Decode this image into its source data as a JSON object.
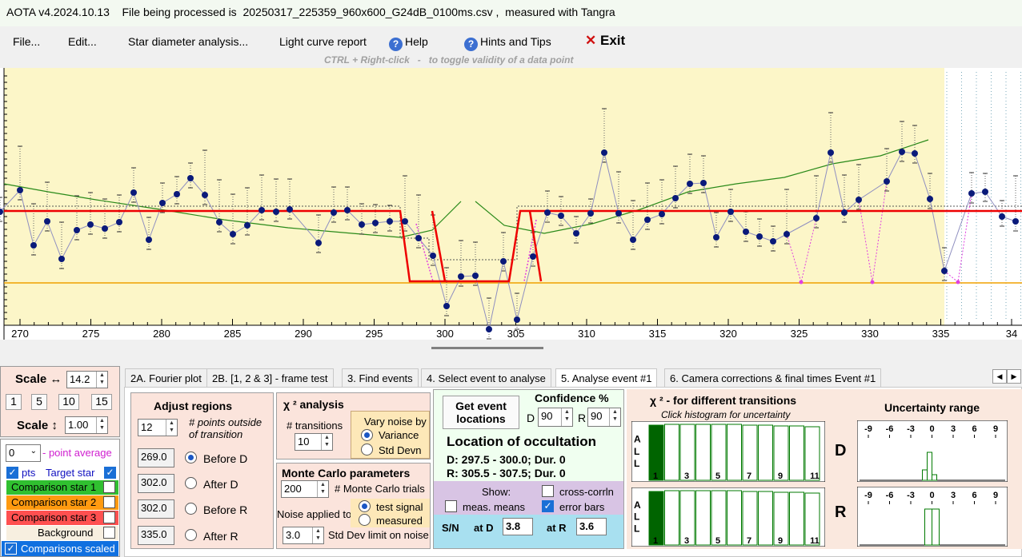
{
  "title_bar": "AOTA v4.2024.10.13    File being processed is  20250317_225359_960x600_G24dB_0100ms.csv ,  measured with Tangra",
  "menu": {
    "file": "File...",
    "edit": "Edit...",
    "star_diameter": "Star diameter analysis...",
    "light_curve": "Light curve report",
    "help": "Help",
    "hints": "Hints and Tips",
    "exit": "Exit"
  },
  "hint": "CTRL + Right-click   -   to toggle validity of a data point",
  "plot": {
    "x_ticks": [
      "270",
      "275",
      "280",
      "285",
      "290",
      "295",
      "300",
      "305",
      "310",
      "315",
      "320",
      "325",
      "330",
      "335",
      "34"
    ],
    "colors": {
      "background": "#fcf6c8",
      "dataline": "#8f8fc0",
      "points": "#0a1a7a",
      "model": "#ee0000",
      "baseline": "#f0a000",
      "smooth": "#2a8a1a",
      "excluded": "#e040e0"
    },
    "points": [
      [
        0,
        265
      ],
      [
        25,
        238
      ],
      [
        42,
        307
      ],
      [
        59,
        277
      ],
      [
        77,
        324
      ],
      [
        96,
        288
      ],
      [
        113,
        281
      ],
      [
        131,
        286
      ],
      [
        149,
        278
      ],
      [
        167,
        241
      ],
      [
        186,
        300
      ],
      [
        203,
        254
      ],
      [
        221,
        243
      ],
      [
        238,
        223
      ],
      [
        256,
        244
      ],
      [
        274,
        278
      ],
      [
        291,
        293
      ],
      [
        309,
        282
      ],
      [
        327,
        263
      ],
      [
        345,
        265
      ],
      [
        362,
        262
      ],
      [
        398,
        304
      ],
      [
        417,
        266
      ],
      [
        434,
        263
      ],
      [
        452,
        281
      ],
      [
        469,
        279
      ],
      [
        487,
        277
      ],
      [
        506,
        277
      ],
      [
        523,
        298
      ],
      [
        541,
        320
      ],
      [
        558,
        383
      ],
      [
        576,
        346
      ],
      [
        594,
        345
      ],
      [
        611,
        412
      ],
      [
        629,
        327
      ],
      [
        646,
        400
      ],
      [
        666,
        321
      ],
      [
        684,
        266
      ],
      [
        701,
        270
      ],
      [
        720,
        292
      ],
      [
        738,
        267
      ],
      [
        755,
        191
      ],
      [
        773,
        267
      ],
      [
        791,
        300
      ],
      [
        809,
        275
      ],
      [
        827,
        268
      ],
      [
        844,
        248
      ],
      [
        862,
        230
      ],
      [
        879,
        229
      ],
      [
        895,
        297
      ],
      [
        913,
        265
      ],
      [
        932,
        290
      ],
      [
        949,
        296
      ],
      [
        966,
        302
      ],
      [
        983,
        293
      ],
      [
        1020,
        273
      ],
      [
        1038,
        191
      ],
      [
        1055,
        266
      ],
      [
        1073,
        250
      ],
      [
        1108,
        227
      ],
      [
        1127,
        190
      ],
      [
        1143,
        192
      ],
      [
        1162,
        249
      ],
      [
        1180,
        339
      ],
      [
        1214,
        242
      ],
      [
        1231,
        240
      ],
      [
        1252,
        271
      ],
      [
        1269,
        277
      ]
    ],
    "excluded_points": [
      [
        1001,
        353
      ],
      [
        1090,
        353
      ],
      [
        1197,
        353
      ]
    ]
  },
  "tabs": [
    "2A. Fourier plot",
    "2B. [1, 2 & 3] - frame test",
    "3. Find events",
    "4. Select event to analyse",
    "5. Analyse event #1",
    "6. Camera corrections & final times Event #1"
  ],
  "left": {
    "scale_h_label": "Scale ↔",
    "scale_h": "14.2",
    "presets": [
      "1",
      "5",
      "10",
      "15"
    ],
    "scale_v_label": "Scale ↕",
    "scale_v": "1.00",
    "point_avg": "0",
    "point_avg_label": "- point average",
    "pts_label": "pts",
    "target_label": "Target star",
    "comp1": "Comparison star 1",
    "comp2": "Comparison star 2",
    "comp3": "Comparison star 3",
    "background": "Background",
    "comp_scaled": "Comparisons scaled"
  },
  "adjust": {
    "title": "Adjust regions",
    "points": "12",
    "points_label": "# points outside of transition",
    "values": [
      "269.0",
      "302.0",
      "302.0",
      "335.0"
    ],
    "labels": [
      "Before D",
      "After D",
      "Before R",
      "After R"
    ]
  },
  "chi": {
    "title": "χ ² analysis",
    "transitions_label": "# transitions",
    "transitions": "10",
    "vary_label": "Vary noise by",
    "variance": "Variance",
    "std_devn": "Std Devn"
  },
  "monte": {
    "title": "Monte Carlo parameters",
    "trials": "200",
    "trials_label": "# Monte Carlo trials",
    "noise_label": "Noise applied to",
    "test_signal": "test signal",
    "measured": "measured",
    "std": "3.0",
    "std_label": "Std Dev limit on noise"
  },
  "locate": {
    "get_button": "Get event locations",
    "confidence_label": "Confidence %",
    "d_label": "D",
    "d_conf": "90",
    "r_label": "R",
    "r_conf": "90",
    "title": "Location of occultation",
    "d_loc": "D: 297.5 - 300.0; Dur. 0",
    "r_loc": "R: 305.5 - 307.5; Dur. 0",
    "show": "Show:",
    "cross": "cross-corrln",
    "meas_means": "meas. means",
    "error_bars": "error bars",
    "sn_label": "S/N",
    "at_d": "at D",
    "sn_d": "3.8",
    "at_r": "at R",
    "sn_r": "3.6"
  },
  "chi_hist": {
    "title": "χ ² - for different transitions",
    "subtitle": "Click histogram for uncertainty",
    "all_label": [
      "A",
      "L",
      "L"
    ],
    "labels": [
      "1",
      "3",
      "5",
      "7",
      "9",
      "11"
    ]
  },
  "uncert": {
    "title": "Uncertainty range",
    "d_label": "D",
    "r_label": "R",
    "ticks": [
      "-9",
      "-6",
      "-3",
      "0",
      "3",
      "6",
      "9"
    ]
  }
}
